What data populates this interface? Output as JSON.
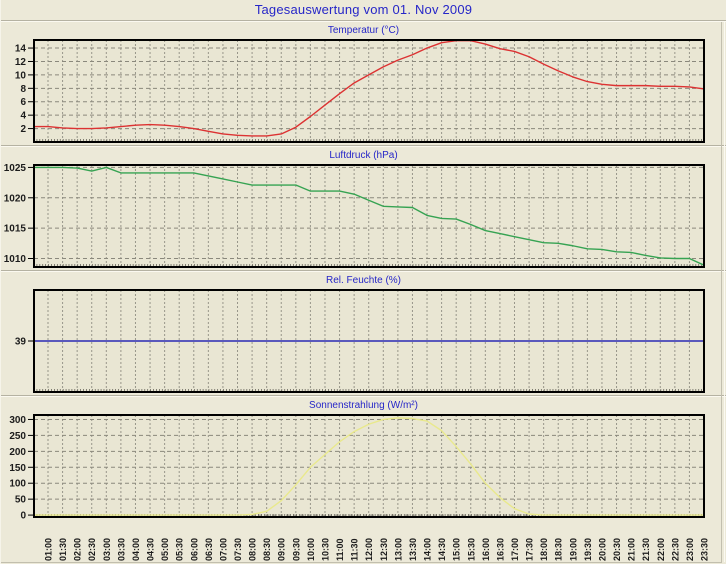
{
  "window": {
    "title": "Tagesauswertung vom 01. Nov 2009"
  },
  "colors": {
    "page_bg": "#ece9d8",
    "plot_bg": "#e9e6d3",
    "frame": "#000000",
    "vgrid": "#98968a",
    "hgrid": "#8a887c",
    "tick_label": "#1c1c1c",
    "title_blue": "#2626c8",
    "temperature_line": "#dc3232",
    "pressure_line": "#36a352",
    "humidity_line": "#2a2ab4",
    "solar_line": "#e9e98c"
  },
  "x_axis": {
    "labels": [
      "01:00",
      "01:30",
      "02:00",
      "02:30",
      "03:00",
      "03:30",
      "04:00",
      "04:30",
      "05:00",
      "05:30",
      "06:00",
      "06:30",
      "07:00",
      "07:30",
      "08:00",
      "08:30",
      "09:00",
      "09:30",
      "10:00",
      "10:30",
      "11:00",
      "11:30",
      "12:00",
      "12:30",
      "13:00",
      "13:30",
      "14:00",
      "14:30",
      "15:00",
      "15:30",
      "16:00",
      "16:30",
      "17:00",
      "17:30",
      "18:00",
      "18:30",
      "19:00",
      "19:30",
      "20:00",
      "20:30",
      "21:00",
      "21:30",
      "22:00",
      "22:30",
      "23:00",
      "23:30"
    ]
  },
  "chart_data": [
    {
      "type": "line",
      "title": "Temperatur (°C)",
      "line_color_key": "temperature_line",
      "ylim": [
        0,
        15.2
      ],
      "yticks": [
        2,
        4,
        6,
        8,
        10,
        12,
        14
      ],
      "grid_h": true,
      "legend": "none",
      "x_categories_ref": "x_axis.labels",
      "values": [
        2.3,
        2.1,
        2.0,
        2.0,
        2.1,
        2.3,
        2.5,
        2.6,
        2.5,
        2.3,
        2.0,
        1.6,
        1.2,
        1.0,
        0.9,
        0.9,
        1.2,
        2.2,
        3.8,
        5.5,
        7.2,
        8.8,
        10.0,
        11.2,
        12.2,
        13.0,
        14.0,
        14.8,
        15.1,
        15.1,
        14.6,
        13.9,
        13.5,
        12.7,
        11.6,
        10.6,
        9.7,
        9.0,
        8.6,
        8.4,
        8.4,
        8.4,
        8.3,
        8.3,
        8.2,
        7.9
      ]
    },
    {
      "type": "line",
      "title": "Luftdruck (hPa)",
      "line_color_key": "pressure_line",
      "ylim": [
        1008.6,
        1025.4
      ],
      "yticks": [
        1010,
        1015,
        1020,
        1025
      ],
      "grid_h": true,
      "legend": "none",
      "x_categories_ref": "x_axis.labels",
      "values": [
        1025,
        1025,
        1024.9,
        1024.4,
        1025,
        1024.1,
        1024.1,
        1024.1,
        1024.1,
        1024.1,
        1024.1,
        1023.6,
        1023.1,
        1022.6,
        1022.1,
        1022.1,
        1022.1,
        1022.1,
        1021.1,
        1021.1,
        1021.1,
        1020.6,
        1019.6,
        1018.6,
        1018.5,
        1018.4,
        1017.1,
        1016.6,
        1016.5,
        1015.6,
        1014.6,
        1014.1,
        1013.6,
        1013.1,
        1012.6,
        1012.5,
        1012.1,
        1011.6,
        1011.5,
        1011.1,
        1011.0,
        1010.5,
        1010.1,
        1010.0,
        1010.0,
        1008.9
      ]
    },
    {
      "type": "line",
      "title": "Rel. Feuchte (%)",
      "line_color_key": "humidity_line",
      "ylim": [
        38,
        40
      ],
      "yticks": [
        39
      ],
      "grid_h": false,
      "legend": "none",
      "x_categories_ref": "x_axis.labels",
      "values": [
        39,
        39,
        39,
        39,
        39,
        39,
        39,
        39,
        39,
        39,
        39,
        39,
        39,
        39,
        39,
        39,
        39,
        39,
        39,
        39,
        39,
        39,
        39,
        39,
        39,
        39,
        39,
        39,
        39,
        39,
        39,
        39,
        39,
        39,
        39,
        39,
        39,
        39,
        39,
        39,
        39,
        39,
        39,
        39,
        39,
        39
      ]
    },
    {
      "type": "line",
      "title": "Sonnenstrahlung (W/m²)",
      "line_color_key": "solar_line",
      "ylim": [
        -6,
        314
      ],
      "yticks": [
        0,
        50,
        100,
        150,
        200,
        250,
        300
      ],
      "grid_h": true,
      "legend": "none",
      "x_categories_ref": "x_axis.labels",
      "values": [
        0,
        0,
        0,
        0,
        0,
        0,
        0,
        0,
        0,
        0,
        0,
        0,
        0,
        0,
        2,
        12,
        45,
        95,
        150,
        190,
        230,
        262,
        285,
        300,
        305,
        303,
        295,
        265,
        215,
        160,
        100,
        55,
        20,
        3,
        0,
        0,
        0,
        0,
        0,
        0,
        0,
        0,
        0,
        0,
        0,
        0
      ]
    }
  ]
}
